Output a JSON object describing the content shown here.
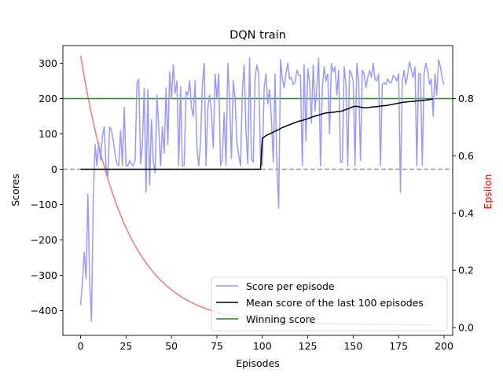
{
  "chart_data": {
    "type": "line",
    "title": "DQN train",
    "xlabel": "Episodes",
    "ylabel": "Scores",
    "y2label": "Epsilon",
    "xlim": [
      -9.75,
      204.75
    ],
    "ylim": [
      -470,
      350
    ],
    "y2lim": [
      -0.027,
      0.985
    ],
    "x_ticks": [
      0,
      25,
      50,
      75,
      100,
      125,
      150,
      175,
      200
    ],
    "y_ticks": [
      -400,
      -300,
      -200,
      -100,
      0,
      100,
      200,
      300
    ],
    "y2_ticks": [
      0.0,
      0.2,
      0.4,
      0.6,
      0.8
    ],
    "y_tick_labels": [
      "−400",
      "−300",
      "−200",
      "−100",
      "0",
      "100",
      "200",
      "300"
    ],
    "y2_tick_labels": [
      "0.0",
      "0.2",
      "0.4",
      "0.6",
      "0.8"
    ],
    "legend_position": "lower-right",
    "colors": {
      "score": "#9999ff",
      "mean": "#000000",
      "winning": "#228b22",
      "epsilon": "#f08080",
      "zero_line": "#999999",
      "epsilon_label": "#ff0000"
    },
    "winning_score": 200,
    "zero_reference": 0,
    "series": [
      {
        "name": "Score per episode",
        "x_start": 0,
        "values": [
          -385,
          -315,
          -235,
          -310,
          -70,
          -320,
          -430,
          -80,
          70,
          10,
          75,
          25,
          95,
          120,
          5,
          -20,
          120,
          110,
          80,
          40,
          15,
          10,
          110,
          10,
          175,
          10,
          10,
          25,
          15,
          10,
          25,
          245,
          255,
          15,
          70,
          230,
          -65,
          225,
          -45,
          140,
          20,
          -10,
          210,
          120,
          10,
          120,
          45,
          230,
          70,
          275,
          200,
          295,
          215,
          250,
          10,
          235,
          10,
          10,
          220,
          210,
          250,
          175,
          150,
          250,
          60,
          10,
          75,
          240,
          300,
          10,
          175,
          210,
          160,
          60,
          270,
          200,
          270,
          10,
          30,
          160,
          10,
          300,
          195,
          30,
          250,
          200,
          75,
          40,
          10,
          220,
          295,
          110,
          15,
          315,
          30,
          20,
          260,
          295,
          270,
          30,
          10,
          230,
          270,
          185,
          225,
          140,
          20,
          270,
          10,
          -110,
          310,
          255,
          230,
          270,
          300,
          255,
          260,
          240,
          245,
          280,
          265,
          265,
          10,
          295,
          80,
          285,
          245,
          130,
          295,
          165,
          235,
          315,
          10,
          230,
          290,
          250,
          270,
          100,
          300,
          275,
          290,
          210,
          280,
          20,
          20,
          290,
          240,
          10,
          280,
          270,
          250,
          10,
          300,
          250,
          25,
          280,
          270,
          230,
          260,
          280,
          260,
          300,
          255,
          250,
          270,
          10,
          240,
          245,
          240,
          255,
          245,
          245,
          265,
          260,
          250,
          270,
          -65,
          250,
          280,
          240,
          270,
          305,
          280,
          260,
          290,
          10,
          270,
          270,
          10,
          270,
          300,
          280,
          240,
          255,
          150,
          270,
          210,
          310,
          290,
          255,
          240
        ]
      },
      {
        "name": "Mean score of the last 100 episodes",
        "x_start": 0,
        "values": [
          0,
          0,
          0,
          0,
          0,
          0,
          0,
          0,
          0,
          0,
          0,
          0,
          0,
          0,
          0,
          0,
          0,
          0,
          0,
          0,
          0,
          0,
          0,
          0,
          0,
          0,
          0,
          0,
          0,
          0,
          0,
          0,
          0,
          0,
          0,
          0,
          0,
          0,
          0,
          0,
          0,
          0,
          0,
          0,
          0,
          0,
          0,
          0,
          0,
          0,
          0,
          0,
          0,
          0,
          0,
          0,
          0,
          0,
          0,
          0,
          0,
          0,
          0,
          0,
          0,
          0,
          0,
          0,
          0,
          0,
          0,
          0,
          0,
          0,
          0,
          0,
          0,
          0,
          0,
          0,
          0,
          0,
          0,
          0,
          0,
          0,
          0,
          0,
          0,
          0,
          0,
          0,
          0,
          0,
          0,
          0,
          0,
          0,
          0,
          0,
          88,
          91,
          95,
          98,
          100,
          102,
          105,
          108,
          110,
          112,
          115,
          118,
          120,
          122,
          124,
          126,
          128,
          130,
          132,
          134,
          136,
          137,
          138,
          140,
          141,
          143,
          145,
          147,
          149,
          150,
          152,
          153,
          155,
          157,
          158,
          159,
          160,
          160,
          161,
          161,
          162,
          163,
          163,
          164,
          165,
          167,
          169,
          171,
          173,
          175,
          177,
          178,
          178,
          177,
          176,
          175,
          174,
          174,
          174,
          175,
          176,
          176,
          177,
          177,
          178,
          179,
          179,
          180,
          180,
          181,
          182,
          183,
          184,
          185,
          186,
          187,
          188,
          189,
          190,
          190,
          191,
          191,
          192,
          192,
          193,
          193,
          194,
          194,
          195,
          195,
          196,
          196,
          197,
          198,
          199
        ]
      },
      {
        "name": "Winning score"
      },
      {
        "name": "epsilon",
        "axis": "right",
        "start": 0.95,
        "end": 0.01,
        "decay_per_episode": 0.96,
        "x_start": 0,
        "x_end": 194
      }
    ]
  }
}
